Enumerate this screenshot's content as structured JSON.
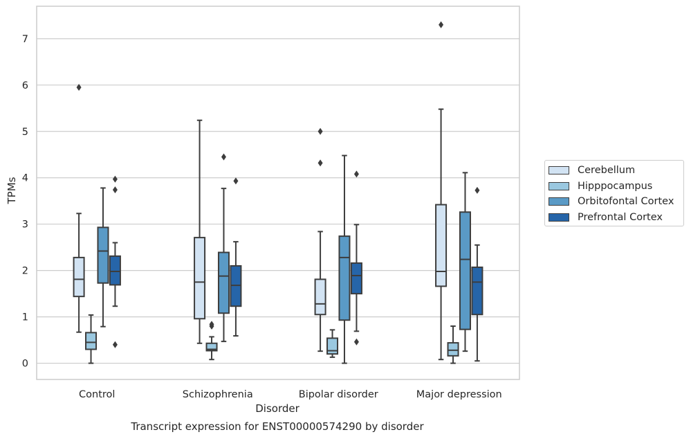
{
  "chart_data": {
    "type": "boxplot",
    "title": "",
    "caption": "Transcript expression for ENST00000574290 by disorder",
    "xlabel": "Disorder",
    "ylabel": "TPMs",
    "ylim": [
      -0.35,
      7.7
    ],
    "yticks": [
      0,
      1,
      2,
      3,
      4,
      5,
      6,
      7
    ],
    "grid": "horizontal",
    "legend_position": "right",
    "categories": [
      "Control",
      "Schizophrenia",
      "Bipolar disorder",
      "Major depression"
    ],
    "series": [
      {
        "name": "Cerebellum",
        "color": "#d2e3f3",
        "boxes": [
          {
            "whislo": 0.67,
            "q1": 1.44,
            "med": 1.81,
            "q3": 2.28,
            "whishi": 3.23,
            "fliers": [
              5.95
            ]
          },
          {
            "whislo": 0.43,
            "q1": 0.96,
            "med": 1.75,
            "q3": 2.71,
            "whishi": 5.24,
            "fliers": []
          },
          {
            "whislo": 0.26,
            "q1": 1.05,
            "med": 1.28,
            "q3": 1.81,
            "whishi": 2.84,
            "fliers": [
              4.32,
              5.0
            ]
          },
          {
            "whislo": 0.08,
            "q1": 1.66,
            "med": 1.98,
            "q3": 3.42,
            "whishi": 5.48,
            "fliers": [
              7.3
            ]
          }
        ]
      },
      {
        "name": "Hipppocampus",
        "color": "#9ac8e0",
        "boxes": [
          {
            "whislo": 0.0,
            "q1": 0.3,
            "med": 0.45,
            "q3": 0.66,
            "whishi": 1.04,
            "fliers": []
          },
          {
            "whislo": 0.08,
            "q1": 0.27,
            "med": 0.3,
            "q3": 0.43,
            "whishi": 0.57,
            "fliers": [
              0.8,
              0.84
            ]
          },
          {
            "whislo": 0.13,
            "q1": 0.2,
            "med": 0.27,
            "q3": 0.54,
            "whishi": 0.72,
            "fliers": []
          },
          {
            "whislo": 0.0,
            "q1": 0.16,
            "med": 0.28,
            "q3": 0.44,
            "whishi": 0.8,
            "fliers": []
          }
        ]
      },
      {
        "name": "Orbitofontal Cortex",
        "color": "#5a9ac6",
        "boxes": [
          {
            "whislo": 0.79,
            "q1": 1.73,
            "med": 2.42,
            "q3": 2.93,
            "whishi": 3.78,
            "fliers": []
          },
          {
            "whislo": 0.47,
            "q1": 1.08,
            "med": 1.88,
            "q3": 2.39,
            "whishi": 3.77,
            "fliers": [
              4.45
            ]
          },
          {
            "whislo": 0.0,
            "q1": 0.93,
            "med": 2.28,
            "q3": 2.74,
            "whishi": 4.48,
            "fliers": []
          },
          {
            "whislo": 0.26,
            "q1": 0.73,
            "med": 2.24,
            "q3": 3.26,
            "whishi": 4.11,
            "fliers": []
          }
        ]
      },
      {
        "name": "Prefrontal Cortex",
        "color": "#2665a9",
        "boxes": [
          {
            "whislo": 1.23,
            "q1": 1.69,
            "med": 1.98,
            "q3": 2.31,
            "whishi": 2.6,
            "fliers": [
              0.4,
              3.74,
              3.97
            ]
          },
          {
            "whislo": 0.59,
            "q1": 1.23,
            "med": 1.68,
            "q3": 2.1,
            "whishi": 2.62,
            "fliers": [
              3.93
            ]
          },
          {
            "whislo": 0.69,
            "q1": 1.5,
            "med": 1.89,
            "q3": 2.16,
            "whishi": 2.99,
            "fliers": [
              0.46,
              4.08
            ]
          },
          {
            "whislo": 0.05,
            "q1": 1.05,
            "med": 1.75,
            "q3": 2.07,
            "whishi": 2.55,
            "fliers": [
              3.73
            ]
          }
        ]
      }
    ]
  }
}
